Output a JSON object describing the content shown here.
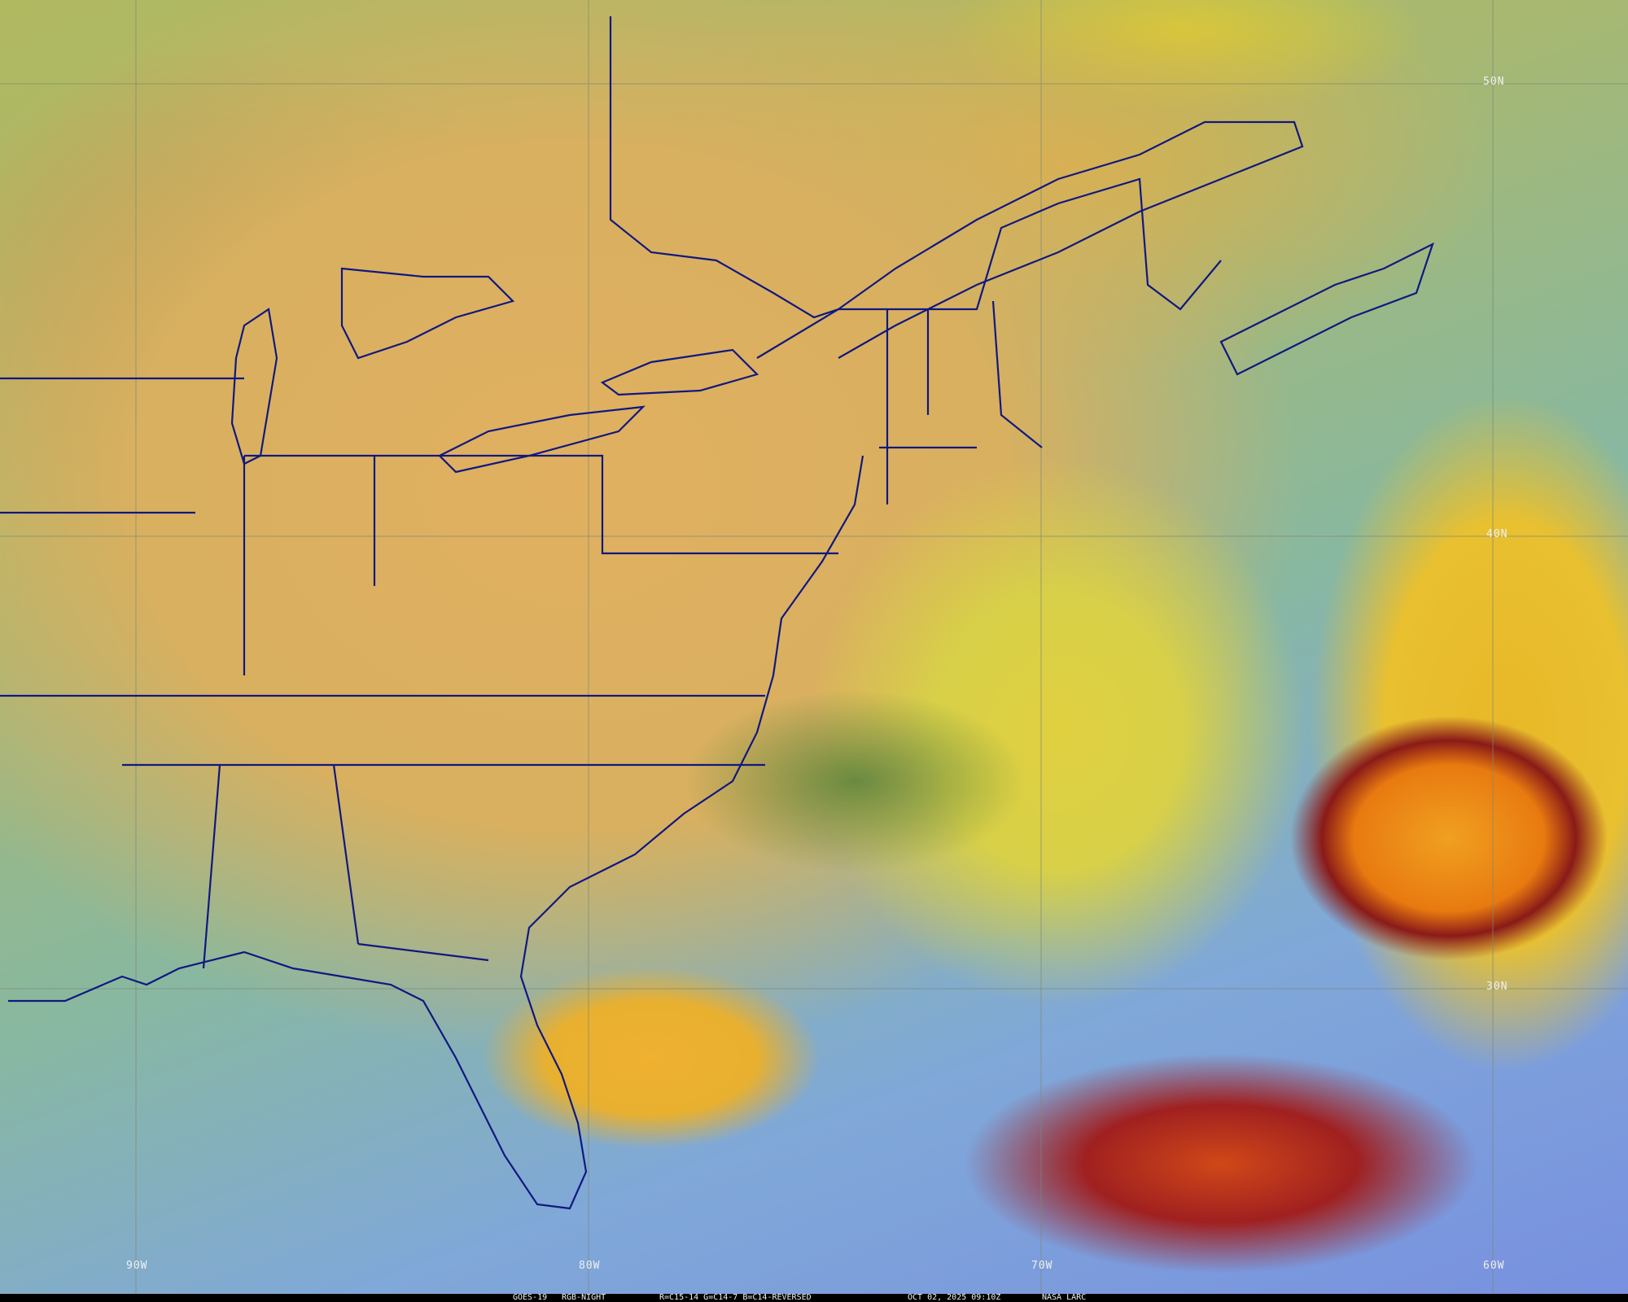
{
  "map": {
    "satellite": "GOES-19",
    "product": "RGB-NIGHT",
    "channels": "R=C15-14 G=C14-7 B=C14-REVERSED",
    "datetime": "OCT 02, 2025 09:10Z",
    "source": "NASA LARC",
    "latitude_labels": [
      "50N",
      "40N",
      "30N"
    ],
    "longitude_labels": [
      "90W",
      "80W",
      "70W",
      "60W"
    ],
    "colors": {
      "borders": "#101880",
      "gridlines": "#7c8878",
      "label_text": "#f0f0f0",
      "caption_bg": "#000000"
    }
  }
}
